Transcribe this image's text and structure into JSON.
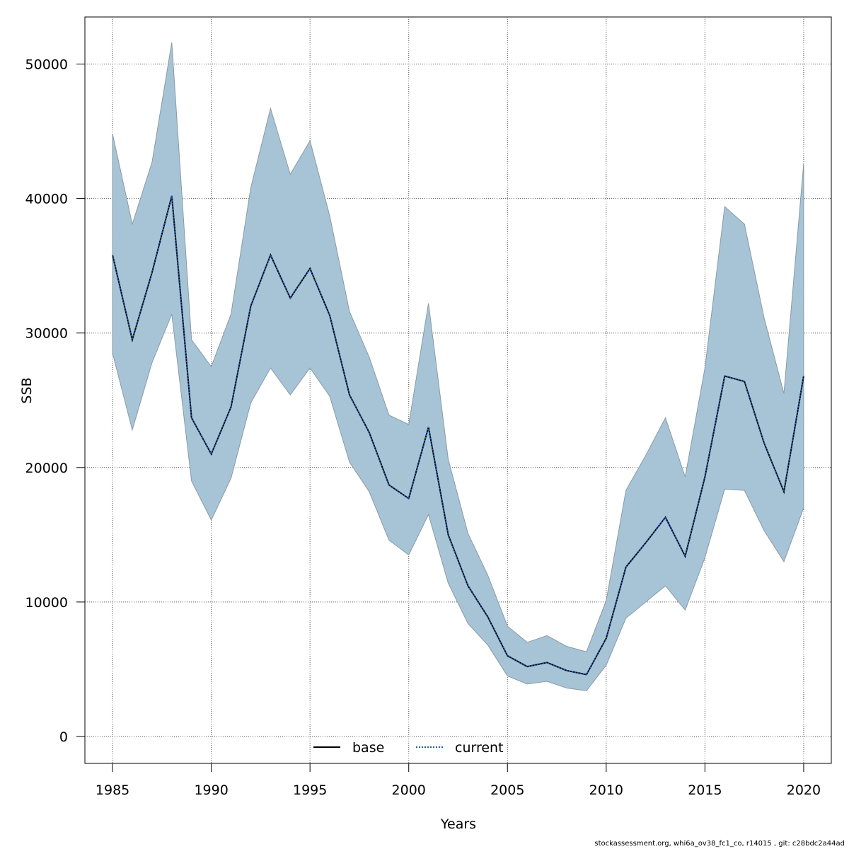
{
  "chart_data": {
    "type": "area",
    "xlabel": "Years",
    "ylabel": "SSB",
    "xlim": [
      1983.6,
      2021.4
    ],
    "ylim": [
      -2000,
      53500
    ],
    "x_ticks": [
      1985,
      1990,
      1995,
      2000,
      2005,
      2010,
      2015,
      2020
    ],
    "y_ticks": [
      0,
      10000,
      20000,
      30000,
      40000,
      50000
    ],
    "grid": true,
    "legend_position": "bottom-center",
    "x": [
      1985,
      1986,
      1987,
      1988,
      1989,
      1990,
      1991,
      1992,
      1993,
      1994,
      1995,
      1996,
      1997,
      1998,
      1999,
      2000,
      2001,
      2002,
      2003,
      2004,
      2005,
      2006,
      2007,
      2008,
      2009,
      2010,
      2011,
      2012,
      2013,
      2014,
      2015,
      2016,
      2017,
      2018,
      2019,
      2020
    ],
    "series": [
      {
        "name": "base",
        "style": "solid",
        "color": "#000000",
        "values": [
          35800,
          29500,
          34500,
          40200,
          23700,
          21000,
          24500,
          32000,
          35800,
          32600,
          34800,
          31300,
          25400,
          22600,
          18700,
          17700,
          23000,
          15000,
          11200,
          8900,
          6000,
          5200,
          5500,
          4900,
          4600,
          7300,
          12600,
          14400,
          16300,
          13400,
          19300,
          26800,
          26400,
          21800,
          18200,
          26800
        ]
      },
      {
        "name": "current",
        "style": "dotted",
        "color": "#1f5aa8",
        "values": [
          35800,
          29500,
          34500,
          40200,
          23700,
          21000,
          24500,
          32000,
          35800,
          32600,
          34800,
          31300,
          25400,
          22600,
          18700,
          17700,
          23000,
          15000,
          11200,
          8900,
          6000,
          5200,
          5500,
          4900,
          4600,
          7300,
          12600,
          14400,
          16300,
          13400,
          19300,
          26800,
          26400,
          21800,
          18200,
          26800
        ]
      }
    ],
    "confidence_band": {
      "fill_color": "#a6c4d6",
      "edge_color": "#8a9aa6",
      "lower": [
        28500,
        22800,
        27800,
        31400,
        19000,
        16100,
        19200,
        24800,
        27400,
        25400,
        27400,
        25300,
        20400,
        18200,
        14600,
        13500,
        16500,
        11400,
        8400,
        6800,
        4500,
        3900,
        4100,
        3600,
        3400,
        5300,
        8800,
        10000,
        11200,
        9400,
        13300,
        18400,
        18300,
        15300,
        13000,
        17000
      ],
      "upper": [
        44800,
        38100,
        42700,
        51600,
        29500,
        27500,
        31400,
        40800,
        46700,
        41800,
        44300,
        38700,
        31600,
        28200,
        23900,
        23200,
        32200,
        20600,
        15100,
        12000,
        8200,
        7000,
        7500,
        6700,
        6300,
        10100,
        18300,
        20900,
        23700,
        19300,
        27400,
        39400,
        38100,
        31100,
        25500,
        42600
      ]
    }
  },
  "footer_text": "stockassessment.org, whi6a_ov38_fc1_co, r14015 , git: c28bdc2a44ad"
}
